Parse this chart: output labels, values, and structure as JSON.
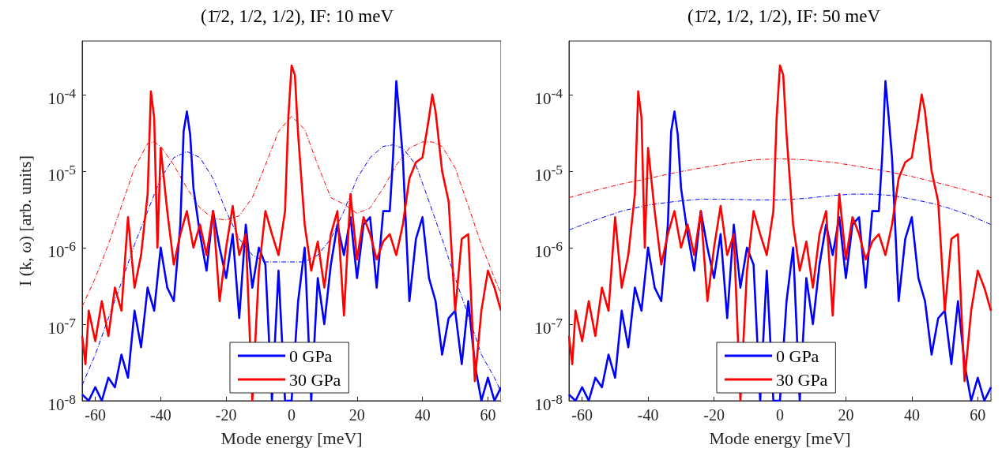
{
  "chart_data": [
    {
      "type": "line",
      "title": "(1̄/2, 1/2, 1/2), IF: 10 meV",
      "xlabel": "Mode energy [meV]",
      "ylabel": "I (k, ω) [arb. units]",
      "log": "y",
      "grid": false,
      "legend": "bottom",
      "marker": "none",
      "xlim": [
        -64,
        64
      ],
      "xticks": [
        -60,
        -40,
        -20,
        0,
        20,
        40,
        60
      ],
      "ylim": [
        1e-08,
        0.0005
      ],
      "yticks": [
        {
          "value": 1e-08,
          "label": "10$^{-8}$"
        },
        {
          "value": 1e-07,
          "label": "10$^{-7}$"
        },
        {
          "value": 1e-06,
          "label": "10$^{-6}$"
        },
        {
          "value": 1e-05,
          "label": "10$^{-5}$"
        },
        {
          "value": 0.0001,
          "label": "10$^{-4}$"
        }
      ],
      "series": [
        {
          "name": "0 GPa",
          "color": "#0000ff",
          "line_style": "solid",
          "x": [
            -64,
            -62,
            -60,
            -58,
            -56,
            -54,
            -52,
            -50,
            -48,
            -46,
            -44,
            -42,
            -40,
            -38,
            -36,
            -34,
            -33,
            -32,
            -31,
            -30,
            -28,
            -26,
            -24,
            -22,
            -20,
            -18,
            -16,
            -14,
            -12,
            -10,
            -8,
            -6,
            -4,
            -2,
            0,
            2,
            4,
            6,
            8,
            10,
            12,
            14,
            16,
            18,
            20,
            22,
            24,
            26,
            28,
            30,
            31,
            32,
            33,
            34,
            36,
            38,
            40,
            42,
            44,
            46,
            48,
            50,
            52,
            54,
            56,
            58,
            60,
            62,
            64
          ],
          "values": [
            1.2e-08,
            1e-08,
            1.5e-08,
            1e-08,
            2e-08,
            1.5e-08,
            4e-08,
            2e-08,
            1.5e-07,
            5e-08,
            3e-07,
            1.5e-07,
            1e-06,
            3e-07,
            2e-07,
            2e-06,
            3.3e-05,
            6e-05,
            3e-05,
            6e-06,
            1.5e-06,
            5e-07,
            3e-06,
            1e-06,
            4e-07,
            1.5e-06,
            1.2e-07,
            2e-06,
            3e-07,
            1e-06,
            6e-07,
            1e-08,
            5e-07,
            1e-08,
            1e-08,
            2e-07,
            1e-06,
            1e-08,
            4e-07,
            1e-07,
            6e-07,
            2e-06,
            8e-07,
            2.5e-06,
            4e-07,
            2e-06,
            2.5e-06,
            3e-07,
            3e-06,
            3e-06,
            1.5e-05,
            0.00015,
            5e-05,
            1.5e-05,
            2e-07,
            1.3e-06,
            2.5e-06,
            4e-07,
            2e-07,
            4e-08,
            1.2e-07,
            1.5e-07,
            3e-08,
            2e-07,
            3e-08,
            1e-08,
            2e-08,
            1e-08,
            1.5e-08
          ]
        },
        {
          "name": "30 GPa",
          "color": "#ff0000",
          "line_style": "solid",
          "x": [
            -64,
            -63,
            -62,
            -60,
            -58,
            -56,
            -54,
            -52,
            -50,
            -48,
            -46,
            -44,
            -43,
            -42,
            -41,
            -40,
            -38,
            -36,
            -34,
            -32,
            -30,
            -28,
            -26,
            -24,
            -22,
            -20,
            -18,
            -16,
            -14,
            -12,
            -10,
            -8,
            -6,
            -4,
            -2,
            -1,
            0,
            1,
            2,
            4,
            6,
            8,
            10,
            12,
            14,
            16,
            18,
            20,
            22,
            24,
            26,
            28,
            30,
            32,
            34,
            36,
            38,
            40,
            42,
            43,
            44,
            46,
            48,
            50,
            52,
            54,
            56,
            58,
            60,
            62,
            64
          ],
          "values": [
            7e-08,
            3e-08,
            1.5e-07,
            6e-08,
            2e-07,
            7e-08,
            3e-07,
            1.5e-07,
            2.5e-06,
            3e-07,
            8e-07,
            5e-06,
            0.00011,
            5e-05,
            1e-06,
            2e-05,
            3e-06,
            6e-07,
            1.5e-06,
            3e-06,
            1e-06,
            2e-06,
            8e-07,
            3e-06,
            2e-07,
            1e-06,
            3.5e-06,
            8e-07,
            1.5e-06,
            1e-08,
            5e-07,
            3e-06,
            1.5e-06,
            8e-07,
            3e-06,
            5e-05,
            0.00024,
            0.00018,
            3e-05,
            2e-06,
            5e-07,
            1.2e-06,
            3e-07,
            1.5e-06,
            3e-06,
            1.3e-07,
            5e-06,
            7e-07,
            2.5e-06,
            1.5e-06,
            7e-07,
            1.2e-06,
            1.5e-06,
            8e-07,
            2e-06,
            8e-06,
            1.3e-05,
            1.5e-05,
            5e-05,
            0.0001,
            6e-05,
            1e-05,
            4e-06,
            1.5e-07,
            1.3e-06,
            1.5e-06,
            1.8e-08,
            1.5e-07,
            5e-07,
            3e-07,
            1.5e-07
          ]
        },
        {
          "color": "#0000ff",
          "line_style": "dashed",
          "x": [
            -64,
            -60,
            -56,
            -52,
            -48,
            -44,
            -40,
            -36,
            -32,
            -28,
            -24,
            -20,
            -16,
            -12,
            -8,
            -4,
            0,
            4,
            8,
            12,
            16,
            20,
            24,
            28,
            31,
            34,
            38,
            42,
            46,
            50,
            54,
            58,
            62,
            64
          ],
          "values": [
            1.6e-08,
            4e-08,
            1.2e-07,
            3.5e-07,
            1.1e-06,
            3e-06,
            8e-06,
            1.5e-05,
            1.8e-05,
            1.5e-05,
            8e-06,
            3e-06,
            1.3e-06,
            8e-07,
            6.5e-07,
            6.5e-07,
            6.5e-07,
            6.5e-07,
            8e-07,
            1.3e-06,
            3e-06,
            8e-06,
            1.5e-05,
            2.1e-05,
            2.2e-05,
            2e-05,
            1.2e-05,
            4e-06,
            1.3e-06,
            4e-07,
            1.3e-07,
            4e-08,
            2e-08,
            1.3e-08
          ]
        },
        {
          "color": "#ff0000",
          "line_style": "dashed",
          "x": [
            -64,
            -60,
            -56,
            -52,
            -48,
            -44,
            -42,
            -40,
            -36,
            -32,
            -28,
            -24,
            -20,
            -16,
            -12,
            -8,
            -4,
            0,
            4,
            8,
            12,
            16,
            20,
            24,
            28,
            32,
            36,
            40,
            43,
            46,
            50,
            54,
            58,
            62,
            64
          ],
          "values": [
            1.7e-07,
            4e-07,
            1.1e-06,
            3.5e-06,
            1.1e-05,
            2.3e-05,
            2.4e-05,
            2.1e-05,
            1.2e-05,
            6e-06,
            3.3e-06,
            2.4e-06,
            2.3e-06,
            2.6e-06,
            4.5e-06,
            1.2e-05,
            3.3e-05,
            5.2e-05,
            3.5e-05,
            1.2e-05,
            4.5e-06,
            3.7e-06,
            2.8e-06,
            3.3e-06,
            6e-06,
            1.2e-05,
            2e-05,
            2.4e-05,
            2.4e-05,
            2.1e-05,
            1.1e-05,
            3.5e-06,
            1.1e-06,
            4e-07,
            2.5e-07
          ]
        }
      ]
    },
    {
      "type": "line",
      "title": "(1̄/2, 1/2, 1/2), IF: 50 meV",
      "xlabel": "Mode energy [meV]",
      "log": "y",
      "grid": false,
      "legend": "bottom",
      "marker": "none",
      "xlim": [
        -64,
        64
      ],
      "xticks": [
        -60,
        -40,
        -20,
        0,
        20,
        40,
        60
      ],
      "ylim": [
        1e-08,
        0.0005
      ],
      "yticks": [
        {
          "value": 1e-08,
          "label": "10$^{-8}$"
        },
        {
          "value": 1e-07,
          "label": "10$^{-7}$"
        },
        {
          "value": 1e-06,
          "label": "10$^{-6}$"
        },
        {
          "value": 1e-05,
          "label": "10$^{-5}$"
        },
        {
          "value": 0.0001,
          "label": "10$^{-4}$"
        }
      ],
      "series": [
        {
          "name": "0 GPa",
          "color": "#0000ff",
          "line_style": "solid",
          "x": [
            -64,
            -62,
            -60,
            -58,
            -56,
            -54,
            -52,
            -50,
            -48,
            -46,
            -44,
            -42,
            -40,
            -38,
            -36,
            -34,
            -33,
            -32,
            -31,
            -30,
            -28,
            -26,
            -24,
            -22,
            -20,
            -18,
            -16,
            -14,
            -12,
            -10,
            -8,
            -6,
            -4,
            -2,
            0,
            2,
            4,
            6,
            8,
            10,
            12,
            14,
            16,
            18,
            20,
            22,
            24,
            26,
            28,
            30,
            31,
            32,
            33,
            34,
            36,
            38,
            40,
            42,
            44,
            46,
            48,
            50,
            52,
            54,
            56,
            58,
            60,
            62,
            64
          ],
          "values": [
            1.2e-08,
            1e-08,
            1.5e-08,
            1e-08,
            2e-08,
            1.5e-08,
            4e-08,
            2e-08,
            1.5e-07,
            5e-08,
            3e-07,
            1.5e-07,
            1e-06,
            3e-07,
            2e-07,
            2e-06,
            3.3e-05,
            6e-05,
            3e-05,
            6e-06,
            1.5e-06,
            5e-07,
            3e-06,
            1e-06,
            4e-07,
            1.5e-06,
            1.2e-07,
            2e-06,
            3e-07,
            1e-06,
            6e-07,
            1e-08,
            5e-07,
            1e-08,
            1e-08,
            2e-07,
            1e-06,
            1e-08,
            4e-07,
            1e-07,
            6e-07,
            2e-06,
            8e-07,
            2.5e-06,
            4e-07,
            2e-06,
            2.5e-06,
            3e-07,
            3e-06,
            3e-06,
            1.5e-05,
            0.00015,
            5e-05,
            1.5e-05,
            2e-07,
            1.3e-06,
            2.5e-06,
            4e-07,
            2e-07,
            4e-08,
            1.2e-07,
            1.5e-07,
            3e-08,
            2e-07,
            3e-08,
            1e-08,
            2e-08,
            1e-08,
            1.5e-08
          ]
        },
        {
          "name": "30 GPa",
          "color": "#ff0000",
          "line_style": "solid",
          "x": [
            -64,
            -63,
            -62,
            -60,
            -58,
            -56,
            -54,
            -52,
            -50,
            -48,
            -46,
            -44,
            -43,
            -42,
            -41,
            -40,
            -38,
            -36,
            -34,
            -32,
            -30,
            -28,
            -26,
            -24,
            -22,
            -20,
            -18,
            -16,
            -14,
            -12,
            -10,
            -8,
            -6,
            -4,
            -2,
            -1,
            0,
            1,
            2,
            4,
            6,
            8,
            10,
            12,
            14,
            16,
            18,
            20,
            22,
            24,
            26,
            28,
            30,
            32,
            34,
            36,
            38,
            40,
            42,
            43,
            44,
            46,
            48,
            50,
            52,
            54,
            56,
            58,
            60,
            62,
            64
          ],
          "values": [
            7e-08,
            3e-08,
            1.5e-07,
            6e-08,
            2e-07,
            7e-08,
            3e-07,
            1.5e-07,
            2.5e-06,
            3e-07,
            8e-07,
            5e-06,
            0.00011,
            5e-05,
            1e-06,
            2e-05,
            3e-06,
            6e-07,
            1.5e-06,
            3e-06,
            1e-06,
            2e-06,
            8e-07,
            3e-06,
            2e-07,
            1e-06,
            3.5e-06,
            8e-07,
            1.5e-06,
            1e-08,
            5e-07,
            3e-06,
            1.5e-06,
            8e-07,
            3e-06,
            5e-05,
            0.00024,
            0.00018,
            3e-05,
            2e-06,
            5e-07,
            1.2e-06,
            3e-07,
            1.5e-06,
            3e-06,
            1.3e-07,
            5e-06,
            7e-07,
            2.5e-06,
            1.5e-06,
            7e-07,
            1.2e-06,
            1.5e-06,
            8e-07,
            2e-06,
            8e-06,
            1.3e-05,
            1.5e-05,
            5e-05,
            0.0001,
            6e-05,
            1e-05,
            4e-06,
            1.5e-07,
            1.3e-06,
            1.5e-06,
            1.8e-08,
            1.5e-07,
            5e-07,
            3e-07,
            1.5e-07
          ]
        },
        {
          "color": "#0000ff",
          "line_style": "dashed",
          "x": [
            -64,
            -56,
            -48,
            -40,
            -32,
            -24,
            -16,
            -8,
            0,
            8,
            16,
            22,
            28,
            34,
            40,
            46,
            52,
            58,
            64
          ],
          "values": [
            1.7e-06,
            2.3e-06,
            3e-06,
            3.6e-06,
            4e-06,
            4.3e-06,
            4.3e-06,
            4.2e-06,
            4.2e-06,
            4.4e-06,
            4.8e-06,
            5e-06,
            5e-06,
            4.8e-06,
            4.3e-06,
            3.8e-06,
            3.2e-06,
            2.6e-06,
            2e-06
          ]
        },
        {
          "color": "#ff0000",
          "line_style": "dashed",
          "x": [
            -64,
            -56,
            -48,
            -40,
            -32,
            -24,
            -16,
            -8,
            0,
            8,
            16,
            24,
            32,
            40,
            48,
            56,
            64
          ],
          "values": [
            4.5e-06,
            5.6e-06,
            6.8e-06,
            8e-06,
            9.5e-06,
            1.1e-05,
            1.25e-05,
            1.4e-05,
            1.45e-05,
            1.4e-05,
            1.3e-05,
            1.15e-05,
            1e-05,
            8.5e-06,
            7e-06,
            5.7e-06,
            4.5e-06
          ]
        }
      ]
    }
  ]
}
